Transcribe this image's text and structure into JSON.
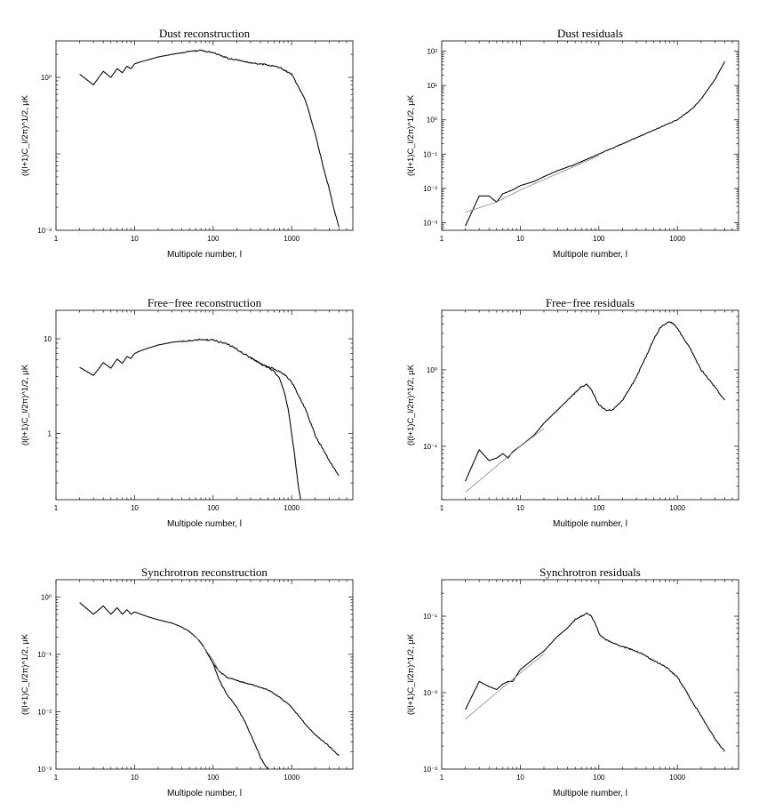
{
  "chart_data": [
    {
      "id": "dust-reconstruction",
      "type": "line",
      "title": "Dust reconstruction",
      "xlabel": "Multipole number, l",
      "ylabel": "(l(l+1)C_l/2π)^1/2, μK",
      "xscale": "log",
      "yscale": "log",
      "xlim": [
        1,
        6000
      ],
      "ylim": [
        0.01,
        3
      ],
      "xticks": [
        1,
        10,
        100,
        1000
      ],
      "xtick_labels": [
        "1",
        "10",
        "100",
        "1000"
      ],
      "yticks": [
        0.01,
        1
      ],
      "ytick_labels": [
        "10⁻²",
        "10⁰"
      ],
      "series": [
        {
          "name": "reconstruction",
          "style": "data",
          "x": [
            2,
            3,
            4,
            5,
            6,
            7,
            8,
            9,
            10,
            12,
            15,
            20,
            30,
            40,
            50,
            70,
            100,
            150,
            200,
            300,
            400,
            500,
            700,
            1000,
            1500,
            2000,
            2500,
            3000,
            3500,
            4000
          ],
          "y": [
            1.1,
            0.8,
            1.2,
            1.0,
            1.3,
            1.15,
            1.4,
            1.3,
            1.5,
            1.6,
            1.7,
            1.85,
            2.0,
            2.1,
            2.2,
            2.25,
            2.1,
            1.8,
            1.7,
            1.55,
            1.5,
            1.45,
            1.35,
            1.1,
            0.5,
            0.18,
            0.07,
            0.035,
            0.018,
            0.011
          ]
        }
      ]
    },
    {
      "id": "dust-residuals",
      "type": "line",
      "title": "Dust residuals",
      "xlabel": "Multipole number, l",
      "ylabel": "(l(l+1)C_l/2π)^1/2, μK",
      "xscale": "log",
      "yscale": "log",
      "xlim": [
        1,
        6000
      ],
      "ylim": [
        0.0006,
        200
      ],
      "xticks": [
        1,
        10,
        100,
        1000
      ],
      "xtick_labels": [
        "1",
        "10",
        "100",
        "1000"
      ],
      "yticks": [
        0.001,
        0.01,
        0.1,
        1,
        10,
        100
      ],
      "ytick_labels": [
        "10⁻³",
        "10⁻²",
        "10⁻¹",
        "10⁰",
        "10¹",
        "10²"
      ],
      "series": [
        {
          "name": "residuals",
          "style": "data",
          "x": [
            2,
            3,
            4,
            5,
            6,
            7,
            8,
            10,
            15,
            20,
            30,
            50,
            100,
            200,
            300,
            500,
            1000,
            1500,
            2000,
            3000,
            4000
          ],
          "y": [
            0.0008,
            0.006,
            0.006,
            0.004,
            0.007,
            0.008,
            0.009,
            0.012,
            0.016,
            0.022,
            0.033,
            0.05,
            0.1,
            0.2,
            0.3,
            0.5,
            1.0,
            2.0,
            4.0,
            15,
            50
          ]
        },
        {
          "name": "model",
          "style": "model",
          "x": [
            2,
            5,
            10,
            20,
            50,
            100
          ],
          "y": [
            0.002,
            0.004,
            0.009,
            0.018,
            0.045,
            0.09
          ]
        }
      ]
    },
    {
      "id": "free-free-reconstruction",
      "type": "line",
      "title": "Free−free reconstruction",
      "xlabel": "Multipole number, l",
      "ylabel": "(l(l+1)C_l/2π)^1/2, μK",
      "xscale": "log",
      "yscale": "log",
      "xlim": [
        1,
        6000
      ],
      "ylim": [
        0.2,
        20
      ],
      "xticks": [
        1,
        10,
        100,
        1000
      ],
      "xtick_labels": [
        "1",
        "10",
        "100",
        "1000"
      ],
      "yticks": [
        1,
        10
      ],
      "ytick_labels": [
        "1",
        "10"
      ],
      "series": [
        {
          "name": "reconstruction",
          "style": "data",
          "x": [
            2,
            3,
            4,
            5,
            6,
            7,
            8,
            9,
            10,
            12,
            15,
            20,
            30,
            50,
            70,
            100,
            150,
            200,
            300,
            400,
            500,
            600,
            700,
            800,
            1000,
            1500,
            2000,
            3000,
            4000
          ],
          "y": [
            5.0,
            4.1,
            5.6,
            4.9,
            6.1,
            5.5,
            6.5,
            6.2,
            7.0,
            7.5,
            8.0,
            8.6,
            9.2,
            9.6,
            9.8,
            9.7,
            8.8,
            7.8,
            6.3,
            5.5,
            5.0,
            4.8,
            4.5,
            4.2,
            3.5,
            1.8,
            0.95,
            0.52,
            0.36
          ]
        },
        {
          "name": "reconstruction-cutoff",
          "style": "data",
          "x": [
            300,
            400,
            500,
            600,
            700,
            800,
            900,
            1000,
            1100,
            1200,
            1300
          ],
          "y": [
            6.3,
            5.5,
            5.0,
            4.5,
            3.8,
            2.8,
            1.8,
            1.0,
            0.55,
            0.3,
            0.2
          ]
        }
      ]
    },
    {
      "id": "free-free-residuals",
      "type": "line",
      "title": "Free−free residuals",
      "xlabel": "Multipole number, l",
      "ylabel": "(l(l+1)C_l/2π)^1/2, μK",
      "xscale": "log",
      "yscale": "log",
      "xlim": [
        1,
        6000
      ],
      "ylim": [
        0.02,
        6
      ],
      "xticks": [
        1,
        10,
        100,
        1000
      ],
      "xtick_labels": [
        "1",
        "10",
        "100",
        "1000"
      ],
      "yticks": [
        0.1,
        1
      ],
      "ytick_labels": [
        "10⁻¹",
        "10⁰"
      ],
      "series": [
        {
          "name": "residuals",
          "style": "data",
          "x": [
            2,
            3,
            4,
            5,
            6,
            7,
            8,
            10,
            15,
            20,
            30,
            40,
            50,
            60,
            70,
            80,
            100,
            120,
            150,
            200,
            300,
            400,
            500,
            600,
            700,
            800,
            900,
            1000,
            1500,
            2000,
            3000,
            4000
          ],
          "y": [
            0.035,
            0.09,
            0.065,
            0.07,
            0.08,
            0.07,
            0.085,
            0.1,
            0.14,
            0.2,
            0.3,
            0.4,
            0.5,
            0.6,
            0.65,
            0.55,
            0.35,
            0.3,
            0.3,
            0.4,
            0.8,
            1.5,
            2.5,
            3.5,
            4.0,
            4.2,
            4.0,
            3.5,
            1.8,
            1.0,
            0.6,
            0.4
          ]
        },
        {
          "name": "model",
          "style": "model",
          "x": [
            2,
            5,
            10,
            20
          ],
          "y": [
            0.025,
            0.055,
            0.1,
            0.17
          ]
        }
      ]
    },
    {
      "id": "synchrotron-reconstruction",
      "type": "line",
      "title": "Synchrotron reconstruction",
      "xlabel": "Multipole number, l",
      "ylabel": "(l(l+1)C_l/2π)^1/2, μK",
      "xscale": "log",
      "yscale": "log",
      "xlim": [
        1,
        6000
      ],
      "ylim": [
        0.001,
        2
      ],
      "xticks": [
        1,
        10,
        100,
        1000
      ],
      "xtick_labels": [
        "1",
        "10",
        "100",
        "1000"
      ],
      "yticks": [
        0.001,
        0.01,
        0.1,
        1
      ],
      "ytick_labels": [
        "10⁻³",
        "10⁻²",
        "10⁻¹",
        "10⁰"
      ],
      "series": [
        {
          "name": "reconstruction",
          "style": "data",
          "x": [
            2,
            3,
            4,
            5,
            6,
            7,
            8,
            9,
            10,
            12,
            15,
            20,
            30,
            40,
            50,
            60,
            70,
            80,
            90,
            100,
            120,
            150,
            200,
            300,
            500,
            700,
            1000,
            1500,
            2000,
            3000,
            4000
          ],
          "y": [
            0.8,
            0.5,
            0.7,
            0.5,
            0.65,
            0.5,
            0.6,
            0.5,
            0.55,
            0.5,
            0.45,
            0.4,
            0.35,
            0.3,
            0.25,
            0.2,
            0.16,
            0.12,
            0.09,
            0.07,
            0.05,
            0.04,
            0.035,
            0.03,
            0.024,
            0.018,
            0.012,
            0.006,
            0.004,
            0.0025,
            0.0017
          ]
        },
        {
          "name": "reconstruction-cutoff",
          "style": "data",
          "x": [
            80,
            100,
            120,
            150,
            200,
            250,
            300,
            350,
            400,
            450,
            500
          ],
          "y": [
            0.12,
            0.07,
            0.035,
            0.02,
            0.012,
            0.007,
            0.004,
            0.0025,
            0.0016,
            0.0012,
            0.001
          ]
        },
        {
          "name": "model",
          "style": "model",
          "x": [
            60,
            80,
            100,
            120
          ],
          "y": [
            0.2,
            0.12,
            0.08,
            0.05
          ]
        }
      ]
    },
    {
      "id": "synchrotron-residuals",
      "type": "line",
      "title": "Synchrotron residuals",
      "xlabel": "Multipole number, l",
      "ylabel": "(l(l+1)C_l/2π)^1/2, μK",
      "xscale": "log",
      "yscale": "log",
      "xlim": [
        1,
        6000
      ],
      "ylim": [
        0.001,
        0.3
      ],
      "xticks": [
        1,
        10,
        100,
        1000
      ],
      "xtick_labels": [
        "1",
        "10",
        "100",
        "1000"
      ],
      "yticks": [
        0.001,
        0.01,
        0.1
      ],
      "ytick_labels": [
        "10⁻³",
        "10⁻²",
        "10⁻¹"
      ],
      "series": [
        {
          "name": "residuals",
          "style": "data",
          "x": [
            2,
            3,
            4,
            5,
            6,
            7,
            8,
            10,
            15,
            20,
            30,
            40,
            50,
            60,
            70,
            80,
            90,
            100,
            120,
            150,
            200,
            300,
            400,
            500,
            700,
            1000,
            1500,
            2000,
            3000,
            4000
          ],
          "y": [
            0.006,
            0.014,
            0.012,
            0.011,
            0.013,
            0.014,
            0.014,
            0.02,
            0.028,
            0.035,
            0.055,
            0.07,
            0.09,
            0.1,
            0.11,
            0.1,
            0.08,
            0.06,
            0.05,
            0.045,
            0.04,
            0.035,
            0.03,
            0.026,
            0.022,
            0.016,
            0.008,
            0.005,
            0.0025,
            0.0017
          ]
        },
        {
          "name": "model",
          "style": "model",
          "x": [
            2,
            5,
            10,
            20
          ],
          "y": [
            0.0045,
            0.01,
            0.018,
            0.032
          ]
        }
      ]
    }
  ]
}
